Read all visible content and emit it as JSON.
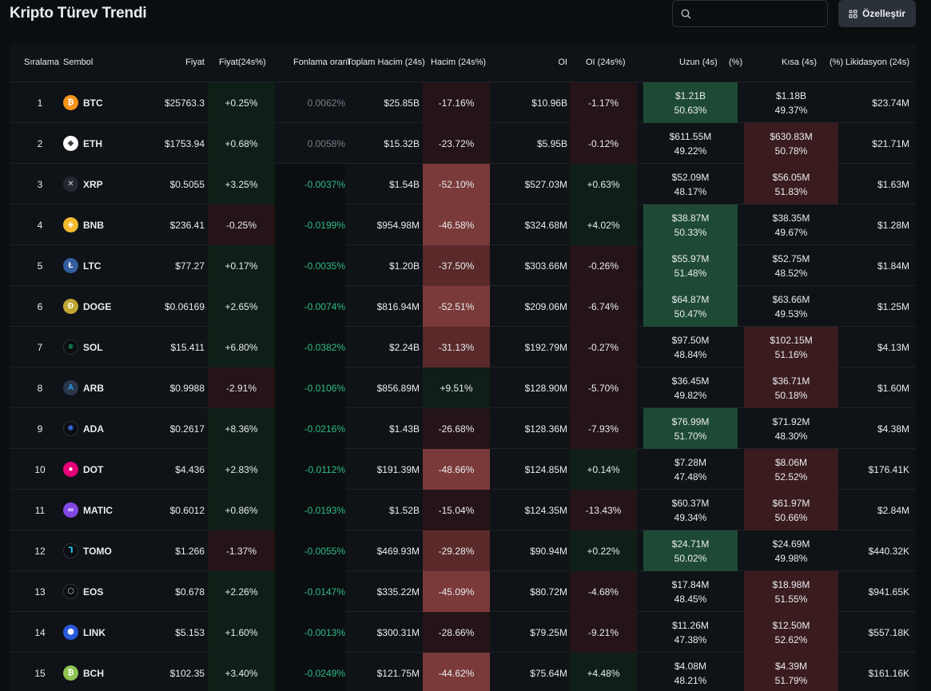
{
  "title": "Kripto Türev Trendi",
  "search": {
    "placeholder": ""
  },
  "customize_label": "Özelleştir",
  "headers": {
    "rank": "Sıralama",
    "symbol": "Sembol",
    "price": "Fiyat",
    "price_change": "Fiyat(24s%)",
    "funding": "Fonlama oranı",
    "total_volume": "Toplam Hacim (24s)",
    "volume_change": "Hacim (24s%)",
    "oi": "OI",
    "oi_change": "OI (24s%)",
    "long": "Uzun (4s)",
    "long_pct": "(%)",
    "short": "Kısa (4s)",
    "short_pct": "(%)",
    "liquidation": "Likidasyon (24s)"
  },
  "rows": [
    {
      "rank": "1",
      "symbol": "BTC",
      "icon": "bitcoin-icon",
      "price": "$25763.3",
      "price_change": "+0.25%",
      "funding": "0.0062%",
      "total_volume": "$25.85B",
      "volume_change": "-17.16%",
      "oi": "$10.96B",
      "oi_change": "-1.17%",
      "long": "$1.21B",
      "long_pct": "50.63%",
      "short": "$1.18B",
      "short_pct": "49.37%",
      "liquidation": "$23.74M"
    },
    {
      "rank": "2",
      "symbol": "ETH",
      "icon": "ethereum-icon",
      "price": "$1753.94",
      "price_change": "+0.68%",
      "funding": "0.0058%",
      "total_volume": "$15.32B",
      "volume_change": "-23.72%",
      "oi": "$5.95B",
      "oi_change": "-0.12%",
      "long": "$611.55M",
      "long_pct": "49.22%",
      "short": "$630.83M",
      "short_pct": "50.78%",
      "liquidation": "$21.71M"
    },
    {
      "rank": "3",
      "symbol": "XRP",
      "icon": "xrp-icon",
      "price": "$0.5055",
      "price_change": "+3.25%",
      "funding": "-0.0037%",
      "total_volume": "$1.54B",
      "volume_change": "-52.10%",
      "oi": "$527.03M",
      "oi_change": "+0.63%",
      "long": "$52.09M",
      "long_pct": "48.17%",
      "short": "$56.05M",
      "short_pct": "51.83%",
      "liquidation": "$1.63M"
    },
    {
      "rank": "4",
      "symbol": "BNB",
      "icon": "bnb-icon",
      "price": "$236.41",
      "price_change": "-0.25%",
      "funding": "-0.0199%",
      "total_volume": "$954.98M",
      "volume_change": "-46.58%",
      "oi": "$324.68M",
      "oi_change": "+4.02%",
      "long": "$38.87M",
      "long_pct": "50.33%",
      "short": "$38.35M",
      "short_pct": "49.67%",
      "liquidation": "$1.28M"
    },
    {
      "rank": "5",
      "symbol": "LTC",
      "icon": "litecoin-icon",
      "price": "$77.27",
      "price_change": "+0.17%",
      "funding": "-0.0035%",
      "total_volume": "$1.20B",
      "volume_change": "-37.50%",
      "oi": "$303.66M",
      "oi_change": "-0.26%",
      "long": "$55.97M",
      "long_pct": "51.48%",
      "short": "$52.75M",
      "short_pct": "48.52%",
      "liquidation": "$1.84M"
    },
    {
      "rank": "6",
      "symbol": "DOGE",
      "icon": "dogecoin-icon",
      "price": "$0.06169",
      "price_change": "+2.65%",
      "funding": "-0.0074%",
      "total_volume": "$816.94M",
      "volume_change": "-52.51%",
      "oi": "$209.06M",
      "oi_change": "-6.74%",
      "long": "$64.87M",
      "long_pct": "50.47%",
      "short": "$63.66M",
      "short_pct": "49.53%",
      "liquidation": "$1.25M"
    },
    {
      "rank": "7",
      "symbol": "SOL",
      "icon": "solana-icon",
      "price": "$15.411",
      "price_change": "+6.80%",
      "funding": "-0.0382%",
      "total_volume": "$2.24B",
      "volume_change": "-31.13%",
      "oi": "$192.79M",
      "oi_change": "-0.27%",
      "long": "$97.50M",
      "long_pct": "48.84%",
      "short": "$102.15M",
      "short_pct": "51.16%",
      "liquidation": "$4.13M"
    },
    {
      "rank": "8",
      "symbol": "ARB",
      "icon": "arbitrum-icon",
      "price": "$0.9988",
      "price_change": "-2.91%",
      "funding": "-0.0106%",
      "total_volume": "$856.89M",
      "volume_change": "+9.51%",
      "oi": "$128.90M",
      "oi_change": "-5.70%",
      "long": "$36.45M",
      "long_pct": "49.82%",
      "short": "$36.71M",
      "short_pct": "50.18%",
      "liquidation": "$1.60M"
    },
    {
      "rank": "9",
      "symbol": "ADA",
      "icon": "cardano-icon",
      "price": "$0.2617",
      "price_change": "+8.36%",
      "funding": "-0.0216%",
      "total_volume": "$1.43B",
      "volume_change": "-26.68%",
      "oi": "$128.36M",
      "oi_change": "-7.93%",
      "long": "$76.99M",
      "long_pct": "51.70%",
      "short": "$71.92M",
      "short_pct": "48.30%",
      "liquidation": "$4.38M"
    },
    {
      "rank": "10",
      "symbol": "DOT",
      "icon": "polkadot-icon",
      "price": "$4.436",
      "price_change": "+2.83%",
      "funding": "-0.0112%",
      "total_volume": "$191.39M",
      "volume_change": "-48.66%",
      "oi": "$124.85M",
      "oi_change": "+0.14%",
      "long": "$7.28M",
      "long_pct": "47.48%",
      "short": "$8.06M",
      "short_pct": "52.52%",
      "liquidation": "$176.41K"
    },
    {
      "rank": "11",
      "symbol": "MATIC",
      "icon": "polygon-icon",
      "price": "$0.6012",
      "price_change": "+0.86%",
      "funding": "-0.0193%",
      "total_volume": "$1.52B",
      "volume_change": "-15.04%",
      "oi": "$124.35M",
      "oi_change": "-13.43%",
      "long": "$60.37M",
      "long_pct": "49.34%",
      "short": "$61.97M",
      "short_pct": "50.66%",
      "liquidation": "$2.84M"
    },
    {
      "rank": "12",
      "symbol": "TOMO",
      "icon": "tomochain-icon",
      "price": "$1.266",
      "price_change": "-1.37%",
      "funding": "-0.0055%",
      "total_volume": "$469.93M",
      "volume_change": "-29.28%",
      "oi": "$90.94M",
      "oi_change": "+0.22%",
      "long": "$24.71M",
      "long_pct": "50.02%",
      "short": "$24.69M",
      "short_pct": "49.98%",
      "liquidation": "$440.32K"
    },
    {
      "rank": "13",
      "symbol": "EOS",
      "icon": "eos-icon",
      "price": "$0.678",
      "price_change": "+2.26%",
      "funding": "-0.0147%",
      "total_volume": "$335.22M",
      "volume_change": "-45.09%",
      "oi": "$80.72M",
      "oi_change": "-4.68%",
      "long": "$17.84M",
      "long_pct": "48.45%",
      "short": "$18.98M",
      "short_pct": "51.55%",
      "liquidation": "$941.65K"
    },
    {
      "rank": "14",
      "symbol": "LINK",
      "icon": "chainlink-icon",
      "price": "$5.153",
      "price_change": "+1.60%",
      "funding": "-0.0013%",
      "total_volume": "$300.31M",
      "volume_change": "-28.66%",
      "oi": "$79.25M",
      "oi_change": "-9.21%",
      "long": "$11.26M",
      "long_pct": "47.38%",
      "short": "$12.50M",
      "short_pct": "52.62%",
      "liquidation": "$557.18K"
    },
    {
      "rank": "15",
      "symbol": "BCH",
      "icon": "bitcoin-cash-icon",
      "price": "$102.35",
      "price_change": "+3.40%",
      "funding": "-0.0249%",
      "total_volume": "$121.75M",
      "volume_change": "-44.62%",
      "oi": "$75.64M",
      "oi_change": "+4.48%",
      "long": "$4.08M",
      "long_pct": "48.21%",
      "short": "$4.39M",
      "short_pct": "51.79%",
      "liquidation": "$161.16K"
    }
  ],
  "colors": {
    "positive_bg": "#0f1f17",
    "negative_bg": "#241417",
    "funding_negative": "#2ebd85",
    "funding_positive": "#7a7f86",
    "long_win_bg": "#1e4a35",
    "short_win_bg": "#3a1c1f"
  }
}
